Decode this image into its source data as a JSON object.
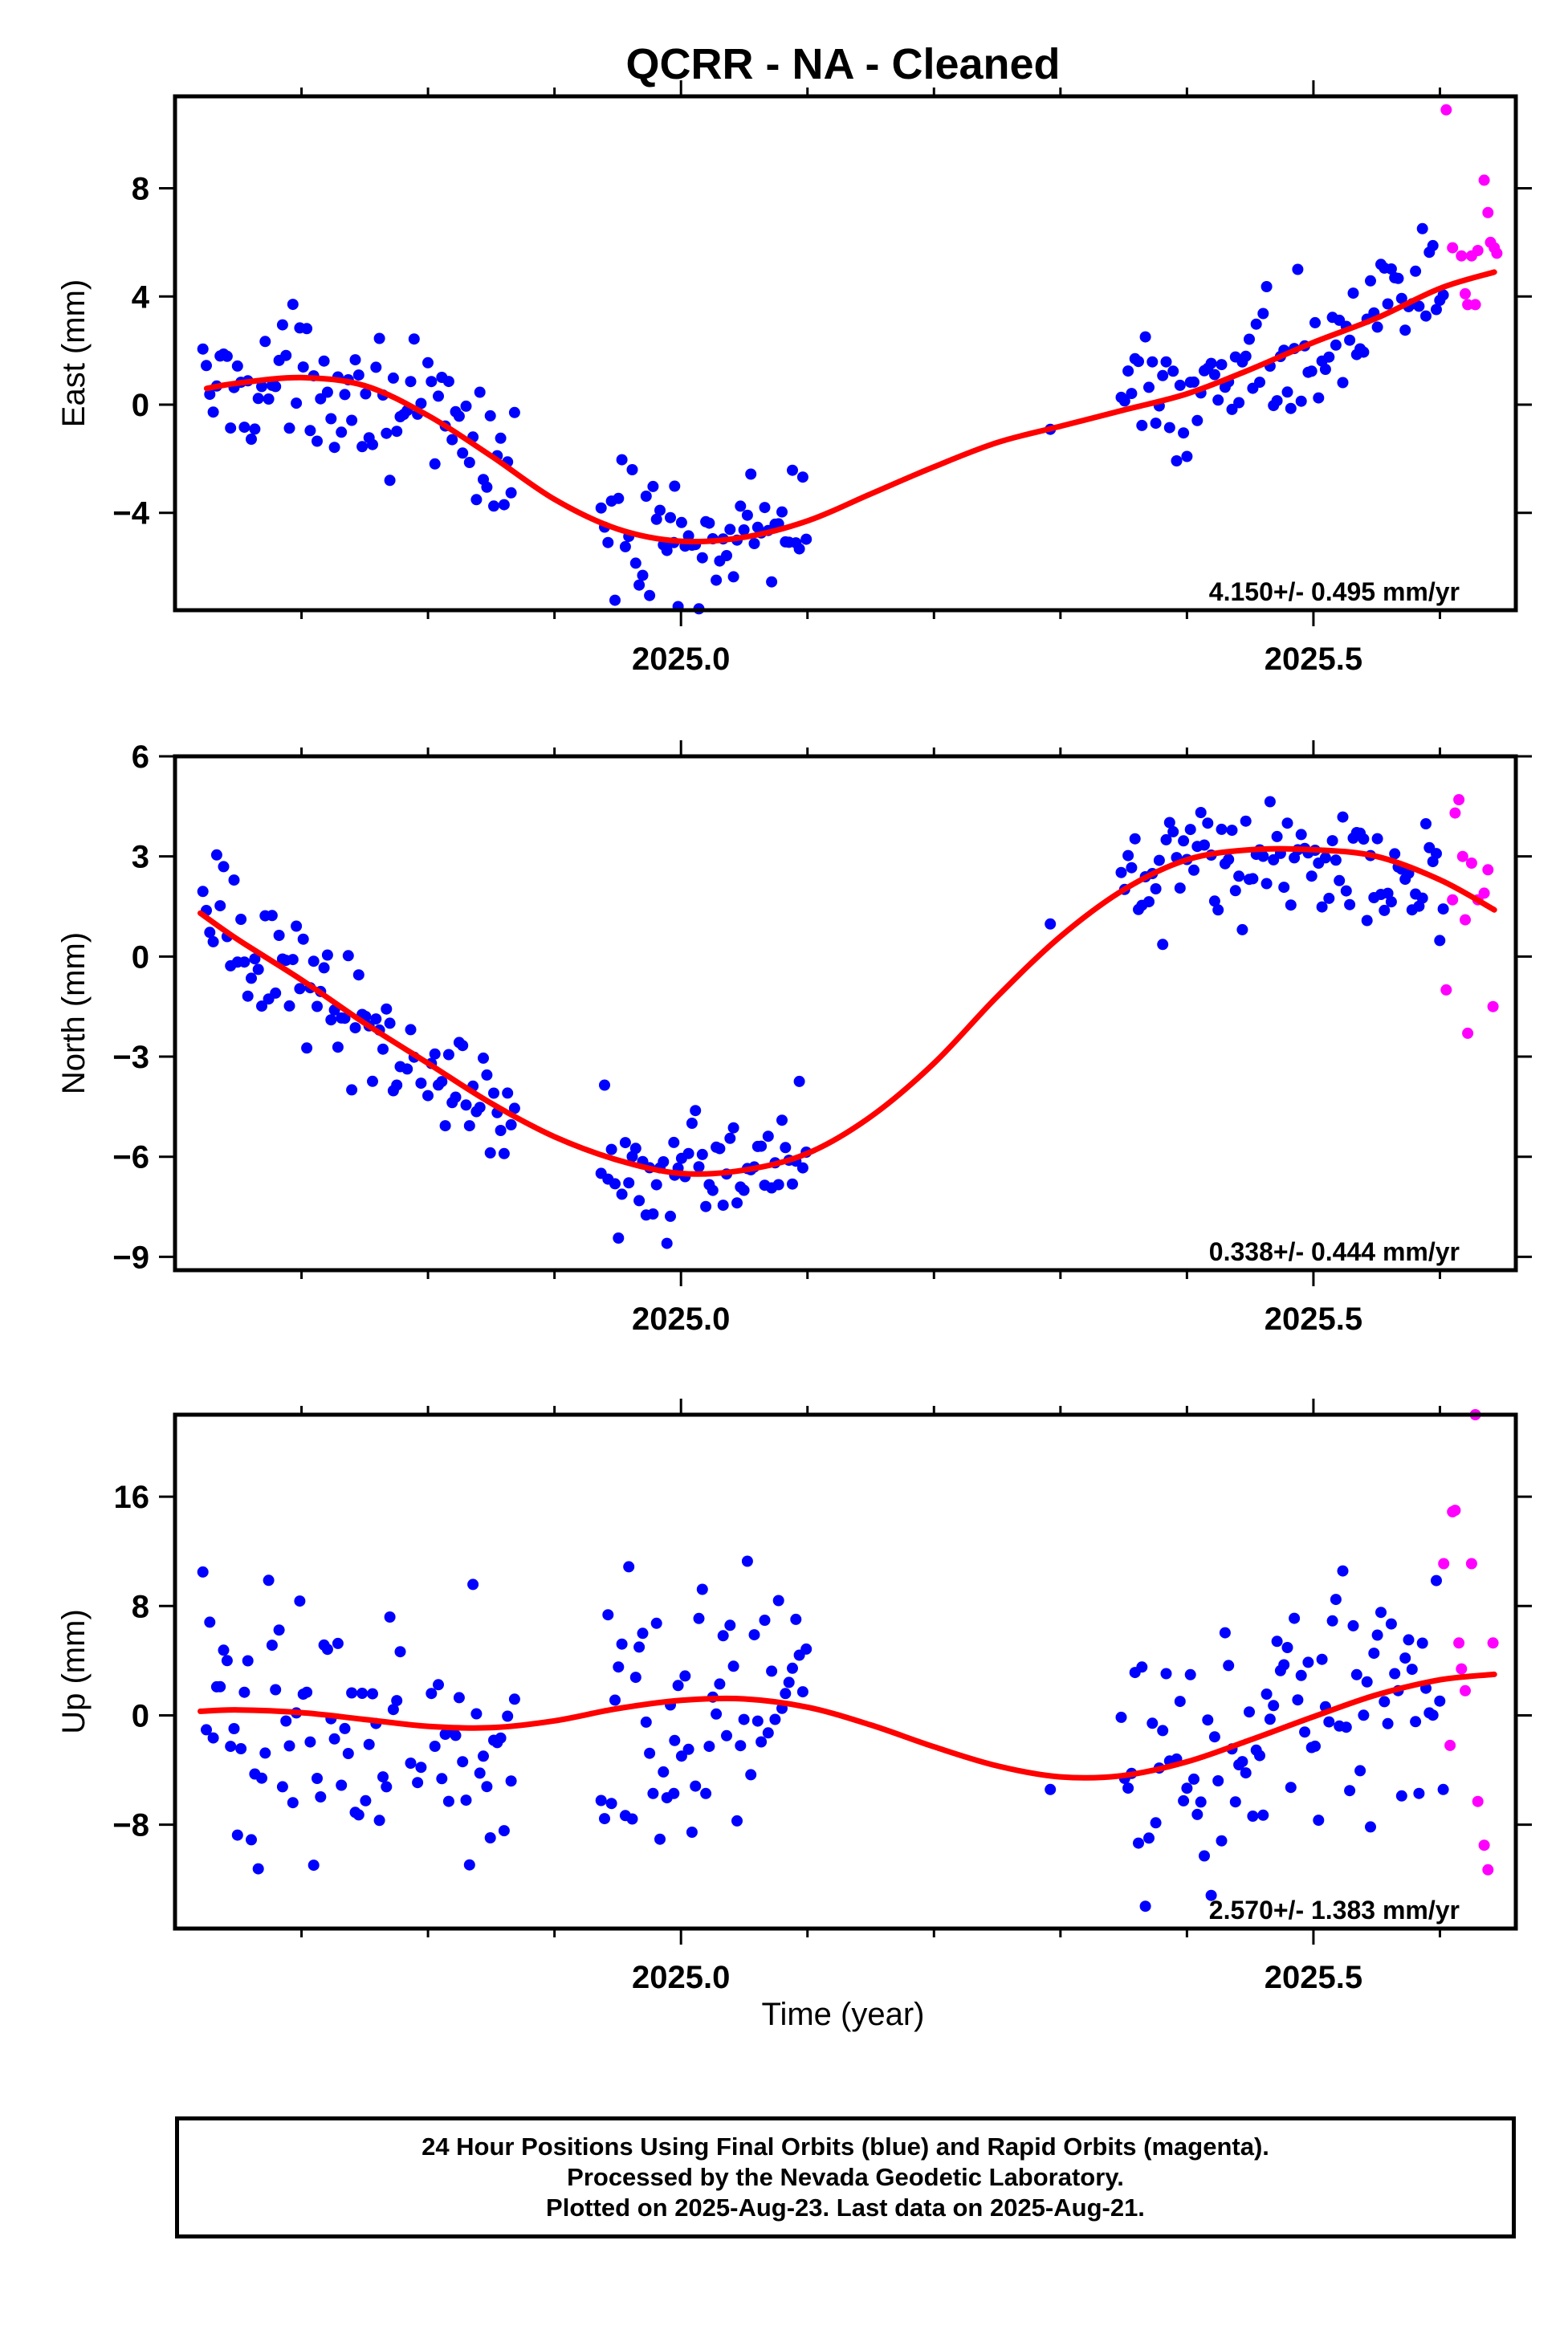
{
  "title": "QCRR  - NA - Cleaned",
  "xlabel": "Time (year)",
  "footer": {
    "line1": "24 Hour Positions Using Final Orbits (blue) and Rapid Orbits (magenta).",
    "line2": "Processed by the Nevada Geodetic Laboratory.",
    "line3": "Plotted on 2025-Aug-23. Last data on 2025-Aug-21."
  },
  "colors": {
    "final": "#0000ff",
    "rapid": "#ff00ff",
    "fit": "#ff0000",
    "frame": "#000000"
  },
  "chart_data": [
    {
      "type": "scatter",
      "panel": "east",
      "ylabel": "East (mm)",
      "rate_label": "4.150+/- 0.495 mm/yr",
      "xlim": [
        2024.6,
        2025.66
      ],
      "ylim": [
        -7.6,
        11.4
      ],
      "x_major_ticks": [
        2025.0,
        2025.5
      ],
      "x_tick_labels": [
        "2025.0",
        "2025.5"
      ],
      "x_minor_ticks": [
        2024.7,
        2024.8,
        2024.9,
        2025.1,
        2025.2,
        2025.3,
        2025.4,
        2025.6
      ],
      "y_ticks": [
        -4,
        0,
        4,
        8
      ],
      "y_tick_labels": [
        "−4",
        "0",
        "4",
        "8"
      ],
      "rapid_points": [
        [
          2025.605,
          10.9
        ],
        [
          2025.61,
          5.8
        ],
        [
          2025.617,
          5.5
        ],
        [
          2025.62,
          4.1
        ],
        [
          2025.622,
          3.7
        ],
        [
          2025.625,
          5.5
        ],
        [
          2025.628,
          3.7
        ],
        [
          2025.63,
          5.7
        ],
        [
          2025.635,
          8.3
        ],
        [
          2025.638,
          7.1
        ],
        [
          2025.64,
          6.0
        ],
        [
          2025.643,
          5.8
        ],
        [
          2025.645,
          5.6
        ]
      ],
      "fit": [
        [
          2024.625,
          0.6
        ],
        [
          2024.65,
          0.8
        ],
        [
          2024.7,
          1.0
        ],
        [
          2024.75,
          0.7
        ],
        [
          2024.8,
          -0.4
        ],
        [
          2024.85,
          -1.9
        ],
        [
          2024.9,
          -3.5
        ],
        [
          2024.95,
          -4.6
        ],
        [
          2025.0,
          -5.05
        ],
        [
          2025.05,
          -4.9
        ],
        [
          2025.1,
          -4.3
        ],
        [
          2025.15,
          -3.3
        ],
        [
          2025.2,
          -2.3
        ],
        [
          2025.25,
          -1.4
        ],
        [
          2025.3,
          -0.8
        ],
        [
          2025.35,
          -0.2
        ],
        [
          2025.4,
          0.4
        ],
        [
          2025.45,
          1.3
        ],
        [
          2025.5,
          2.3
        ],
        [
          2025.55,
          3.2
        ],
        [
          2025.6,
          4.3
        ],
        [
          2025.643,
          4.9
        ]
      ]
    },
    {
      "type": "scatter",
      "panel": "north",
      "ylabel": "North (mm)",
      "rate_label": "0.338+/- 0.444 mm/yr",
      "xlim": [
        2024.6,
        2025.66
      ],
      "ylim": [
        -9.4,
        6.0
      ],
      "x_major_ticks": [
        2025.0,
        2025.5
      ],
      "x_tick_labels": [
        "2025.0",
        "2025.5"
      ],
      "x_minor_ticks": [
        2024.7,
        2024.8,
        2024.9,
        2025.1,
        2025.2,
        2025.3,
        2025.4,
        2025.6
      ],
      "y_ticks": [
        -9,
        -6,
        -3,
        0,
        3,
        6
      ],
      "y_tick_labels": [
        "−9",
        "−6",
        "−3",
        "0",
        "3",
        "6"
      ],
      "rapid_points": [
        [
          2025.605,
          -1.0
        ],
        [
          2025.61,
          1.7
        ],
        [
          2025.612,
          4.3
        ],
        [
          2025.615,
          4.7
        ],
        [
          2025.618,
          3.0
        ],
        [
          2025.62,
          1.1
        ],
        [
          2025.622,
          -2.3
        ],
        [
          2025.625,
          2.8
        ],
        [
          2025.63,
          1.7
        ],
        [
          2025.635,
          1.9
        ],
        [
          2025.638,
          2.6
        ],
        [
          2025.642,
          -1.5
        ]
      ],
      "fit": [
        [
          2024.62,
          1.3
        ],
        [
          2024.65,
          0.5
        ],
        [
          2024.7,
          -0.7
        ],
        [
          2024.75,
          -2.0
        ],
        [
          2024.8,
          -3.2
        ],
        [
          2024.85,
          -4.4
        ],
        [
          2024.9,
          -5.4
        ],
        [
          2024.95,
          -6.1
        ],
        [
          2025.0,
          -6.5
        ],
        [
          2025.05,
          -6.4
        ],
        [
          2025.1,
          -5.9
        ],
        [
          2025.15,
          -4.8
        ],
        [
          2025.2,
          -3.2
        ],
        [
          2025.25,
          -1.2
        ],
        [
          2025.3,
          0.6
        ],
        [
          2025.35,
          2.0
        ],
        [
          2025.4,
          2.9
        ],
        [
          2025.45,
          3.2
        ],
        [
          2025.5,
          3.2
        ],
        [
          2025.55,
          3.0
        ],
        [
          2025.6,
          2.3
        ],
        [
          2025.643,
          1.4
        ]
      ]
    },
    {
      "type": "scatter",
      "panel": "up",
      "ylabel": "Up (mm)",
      "rate_label": "2.570+/- 1.383 mm/yr",
      "xlim": [
        2024.6,
        2025.66
      ],
      "ylim": [
        -15.6,
        22.0
      ],
      "x_major_ticks": [
        2025.0,
        2025.5
      ],
      "x_tick_labels": [
        "2025.0",
        "2025.5"
      ],
      "x_minor_ticks": [
        2024.7,
        2024.8,
        2024.9,
        2025.1,
        2025.2,
        2025.3,
        2025.4,
        2025.6
      ],
      "y_ticks": [
        -8,
        0,
        8,
        16
      ],
      "y_tick_labels": [
        "−8",
        "0",
        "8",
        "16"
      ],
      "rapid_points": [
        [
          2025.603,
          11.1
        ],
        [
          2025.608,
          -2.2
        ],
        [
          2025.61,
          14.9
        ],
        [
          2025.612,
          15.0
        ],
        [
          2025.615,
          5.3
        ],
        [
          2025.617,
          3.4
        ],
        [
          2025.62,
          1.8
        ],
        [
          2025.625,
          11.1
        ],
        [
          2025.628,
          22.0
        ],
        [
          2025.63,
          -6.3
        ],
        [
          2025.635,
          -9.5
        ],
        [
          2025.638,
          -11.3
        ],
        [
          2025.642,
          5.3
        ]
      ],
      "fit": [
        [
          2024.62,
          0.3
        ],
        [
          2024.65,
          0.4
        ],
        [
          2024.7,
          0.2
        ],
        [
          2024.75,
          -0.3
        ],
        [
          2024.8,
          -0.8
        ],
        [
          2024.85,
          -0.9
        ],
        [
          2024.9,
          -0.4
        ],
        [
          2024.95,
          0.5
        ],
        [
          2025.0,
          1.1
        ],
        [
          2025.05,
          1.2
        ],
        [
          2025.1,
          0.6
        ],
        [
          2025.15,
          -0.7
        ],
        [
          2025.2,
          -2.3
        ],
        [
          2025.25,
          -3.7
        ],
        [
          2025.3,
          -4.5
        ],
        [
          2025.35,
          -4.4
        ],
        [
          2025.4,
          -3.4
        ],
        [
          2025.45,
          -1.8
        ],
        [
          2025.5,
          -0.1
        ],
        [
          2025.55,
          1.5
        ],
        [
          2025.6,
          2.6
        ],
        [
          2025.643,
          3.0
        ]
      ]
    }
  ]
}
